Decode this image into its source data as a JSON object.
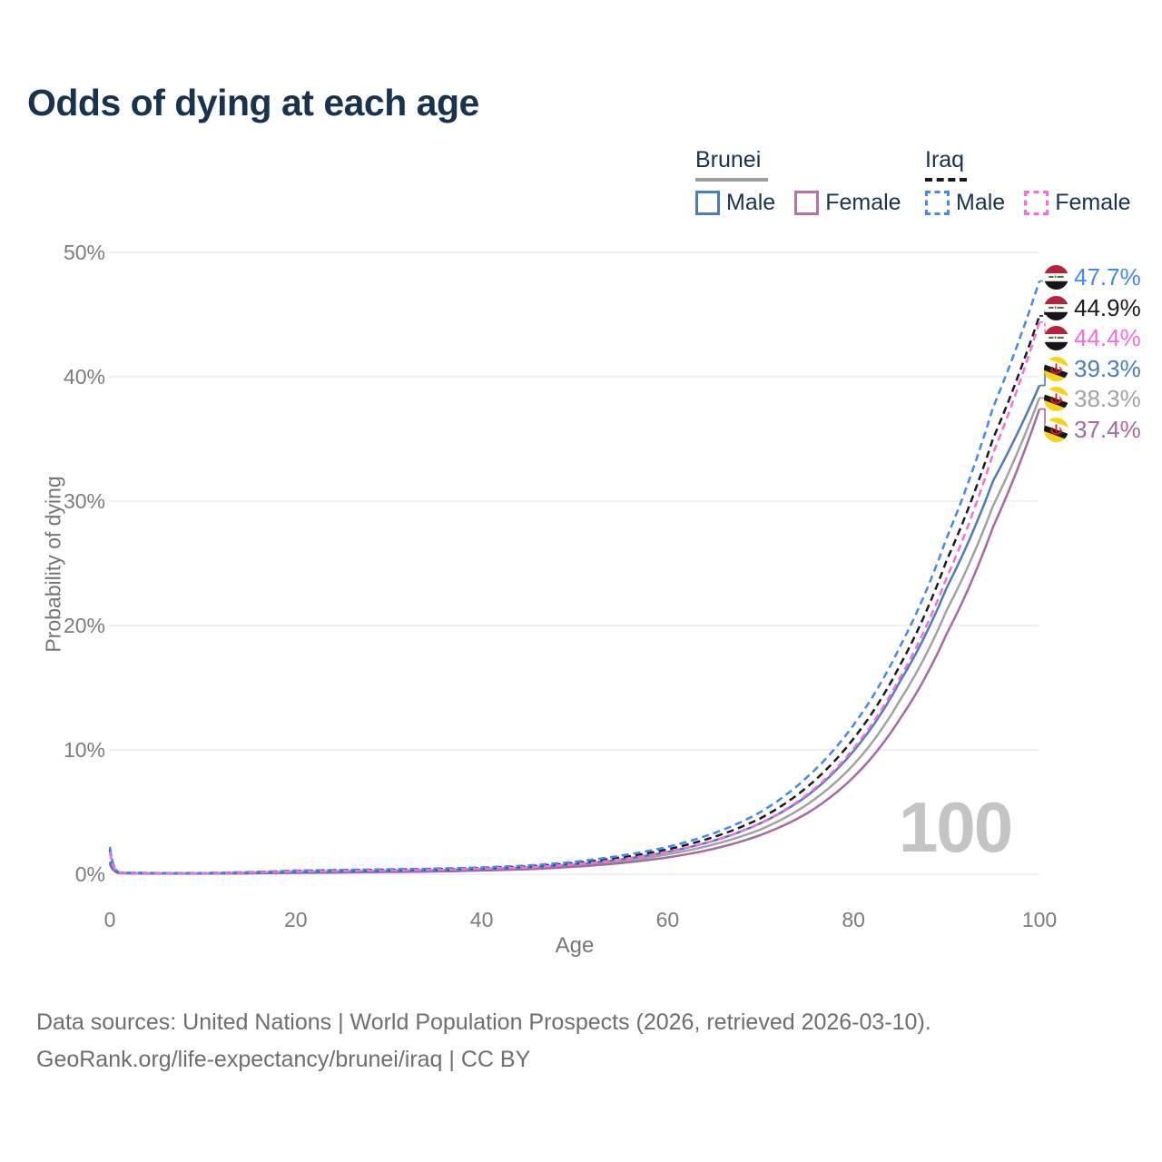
{
  "title": "Odds of dying at each age",
  "watermark": "100",
  "legend": {
    "groups": [
      {
        "label": "Brunei",
        "line_style": "solid",
        "underline_color": "#9e9e9e",
        "items": [
          {
            "label": "Male",
            "color": "#4d7cba"
          },
          {
            "label": "Female",
            "color": "#b573ad"
          }
        ]
      },
      {
        "label": "Iraq",
        "line_style": "dashed",
        "underline_color": "#1a1a1a",
        "items": [
          {
            "label": "Male",
            "color": "#4289f5"
          },
          {
            "label": "Female",
            "color": "#f66ede"
          }
        ]
      }
    ]
  },
  "chart_data": {
    "type": "line",
    "title": "Odds of dying at each age",
    "xlabel": "Age",
    "ylabel": "Probability of dying",
    "xlim": [
      0,
      100
    ],
    "ylim": [
      0,
      50
    ],
    "x_ticks": [
      0,
      20,
      40,
      60,
      80,
      100
    ],
    "y_ticks": [
      0,
      10,
      20,
      30,
      40,
      50
    ],
    "y_tick_suffix": "%",
    "grid": "horizontal",
    "legend_position": "top-right",
    "x": [
      0,
      1,
      5,
      10,
      20,
      30,
      35,
      40,
      45,
      50,
      55,
      60,
      65,
      70,
      75,
      80,
      85,
      90,
      95,
      100
    ],
    "series": [
      {
        "name": "Iraq Male",
        "country": "Iraq",
        "sex": "Male",
        "color": "#4289f5",
        "dashed": true,
        "flag": "iraq",
        "end_label": "47.7%",
        "values": [
          2.2,
          0.15,
          0.1,
          0.1,
          0.3,
          0.4,
          0.45,
          0.55,
          0.7,
          1.0,
          1.5,
          2.2,
          3.3,
          5.0,
          7.8,
          12.0,
          18.3,
          27.0,
          37.5,
          47.7
        ]
      },
      {
        "name": "Iraq",
        "country": "Iraq",
        "sex": "Both",
        "color": "#1c1c1c",
        "dashed": true,
        "flag": "iraq",
        "end_label": "44.9%",
        "values": [
          2.0,
          0.13,
          0.09,
          0.09,
          0.27,
          0.36,
          0.4,
          0.5,
          0.63,
          0.9,
          1.35,
          2.0,
          3.0,
          4.5,
          7.0,
          10.9,
          16.8,
          25.2,
          35.0,
          44.9
        ]
      },
      {
        "name": "Iraq Female",
        "country": "Iraq",
        "sex": "Female",
        "color": "#f66ede",
        "dashed": true,
        "flag": "iraq",
        "end_label": "44.4%",
        "values": [
          1.8,
          0.12,
          0.08,
          0.08,
          0.22,
          0.3,
          0.35,
          0.45,
          0.55,
          0.8,
          1.2,
          1.8,
          2.7,
          4.1,
          6.4,
          10.1,
          15.8,
          23.8,
          33.8,
          44.4
        ]
      },
      {
        "name": "Brunei Male",
        "country": "Brunei",
        "sex": "Male",
        "color": "#4d7cba",
        "dashed": false,
        "flag": "brunei",
        "end_label": "39.3%",
        "values": [
          1.0,
          0.1,
          0.06,
          0.06,
          0.15,
          0.25,
          0.3,
          0.4,
          0.55,
          0.8,
          1.2,
          1.8,
          2.7,
          4.1,
          6.3,
          9.9,
          15.5,
          23.0,
          31.6,
          39.3
        ]
      },
      {
        "name": "Brunei",
        "country": "Brunei",
        "sex": "Both",
        "color": "#a2a2a2",
        "dashed": false,
        "flag": "brunei",
        "end_label": "38.3%",
        "values": [
          0.9,
          0.09,
          0.05,
          0.05,
          0.13,
          0.22,
          0.27,
          0.35,
          0.48,
          0.7,
          1.05,
          1.6,
          2.4,
          3.6,
          5.6,
          8.8,
          14.0,
          21.2,
          29.6,
          38.3
        ]
      },
      {
        "name": "Brunei Female",
        "country": "Brunei",
        "sex": "Female",
        "color": "#a669a2",
        "dashed": false,
        "flag": "brunei",
        "end_label": "37.4%",
        "values": [
          0.8,
          0.08,
          0.05,
          0.05,
          0.11,
          0.18,
          0.22,
          0.3,
          0.4,
          0.6,
          0.9,
          1.35,
          2.05,
          3.15,
          4.9,
          7.8,
          12.5,
          19.3,
          27.9,
          37.4
        ]
      }
    ]
  },
  "footer": {
    "line1": "Data sources: United Nations | World Population Prospects (2026, retrieved 2026-03-10).",
    "line2": "GeoRank.org/life-expectancy/brunei/iraq | CC BY"
  }
}
